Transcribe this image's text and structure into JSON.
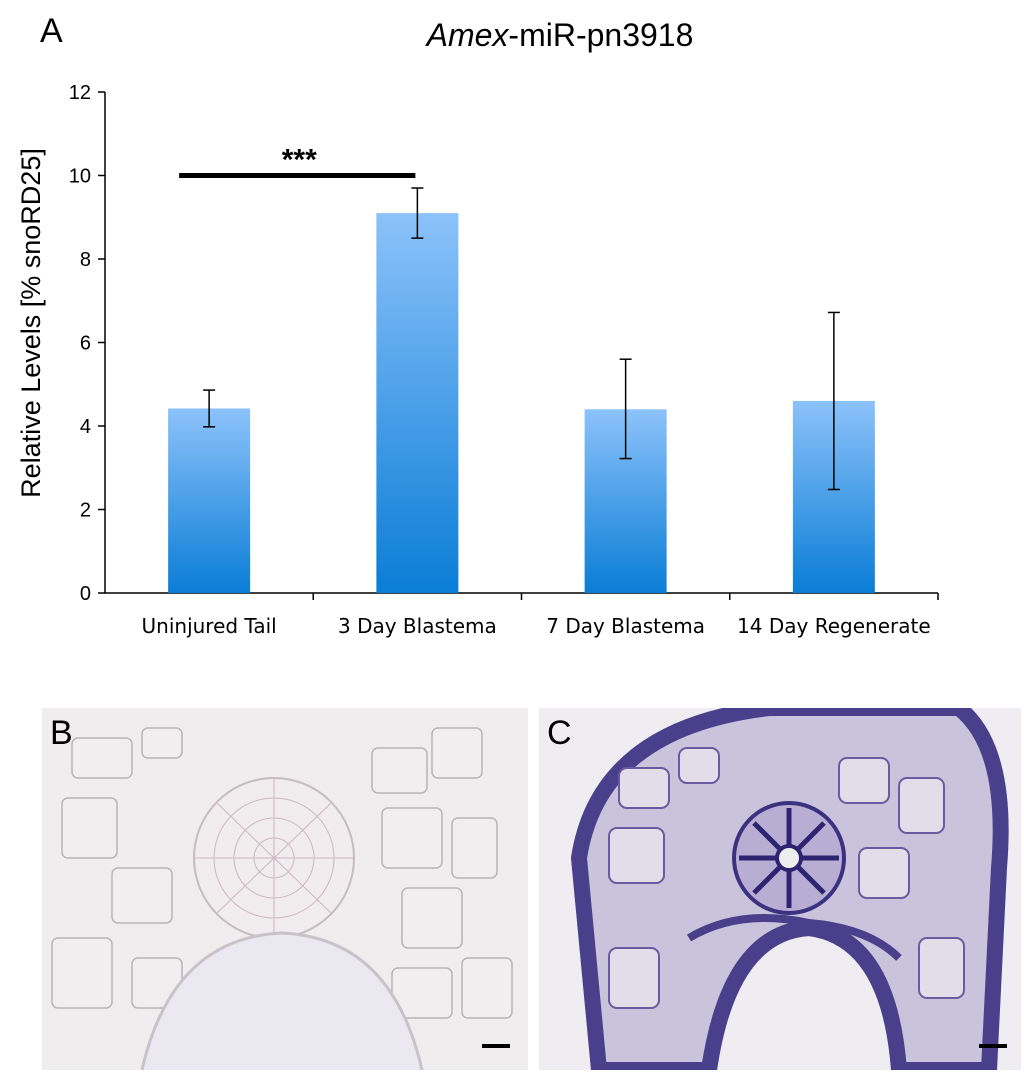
{
  "panels": {
    "a": "A",
    "b": "B",
    "c": "C"
  },
  "chart_data": {
    "type": "bar",
    "title_italic": "Amex",
    "title_rest": "-miR-pn3918",
    "ylabel": "Relative Levels [% snoRD25]",
    "xlabel": "",
    "ylim": [
      0,
      12
    ],
    "yticks": [
      0,
      2,
      4,
      6,
      8,
      10,
      12
    ],
    "categories": [
      "Uninjured Tail",
      "3 Day Blastema",
      "7 Day Blastema",
      "14 Day Regenerate"
    ],
    "values": [
      4.42,
      9.1,
      4.4,
      4.6
    ],
    "error_low": [
      3.98,
      8.5,
      3.22,
      2.48
    ],
    "error_high": [
      4.86,
      9.7,
      5.6,
      6.72
    ],
    "significance": {
      "from": 0,
      "to": 1,
      "label": "***",
      "y": 10
    },
    "colors": {
      "bar_top": "#8cc2fa",
      "bar_bottom": "#0a7dd6"
    },
    "grid": false,
    "legend": "none"
  },
  "micrographs": {
    "b": {
      "background": "#f0eeee",
      "stain": "faint"
    },
    "c": {
      "background": "#efedf2",
      "stain": "dark purple",
      "stain_color": "#3a3280"
    }
  }
}
